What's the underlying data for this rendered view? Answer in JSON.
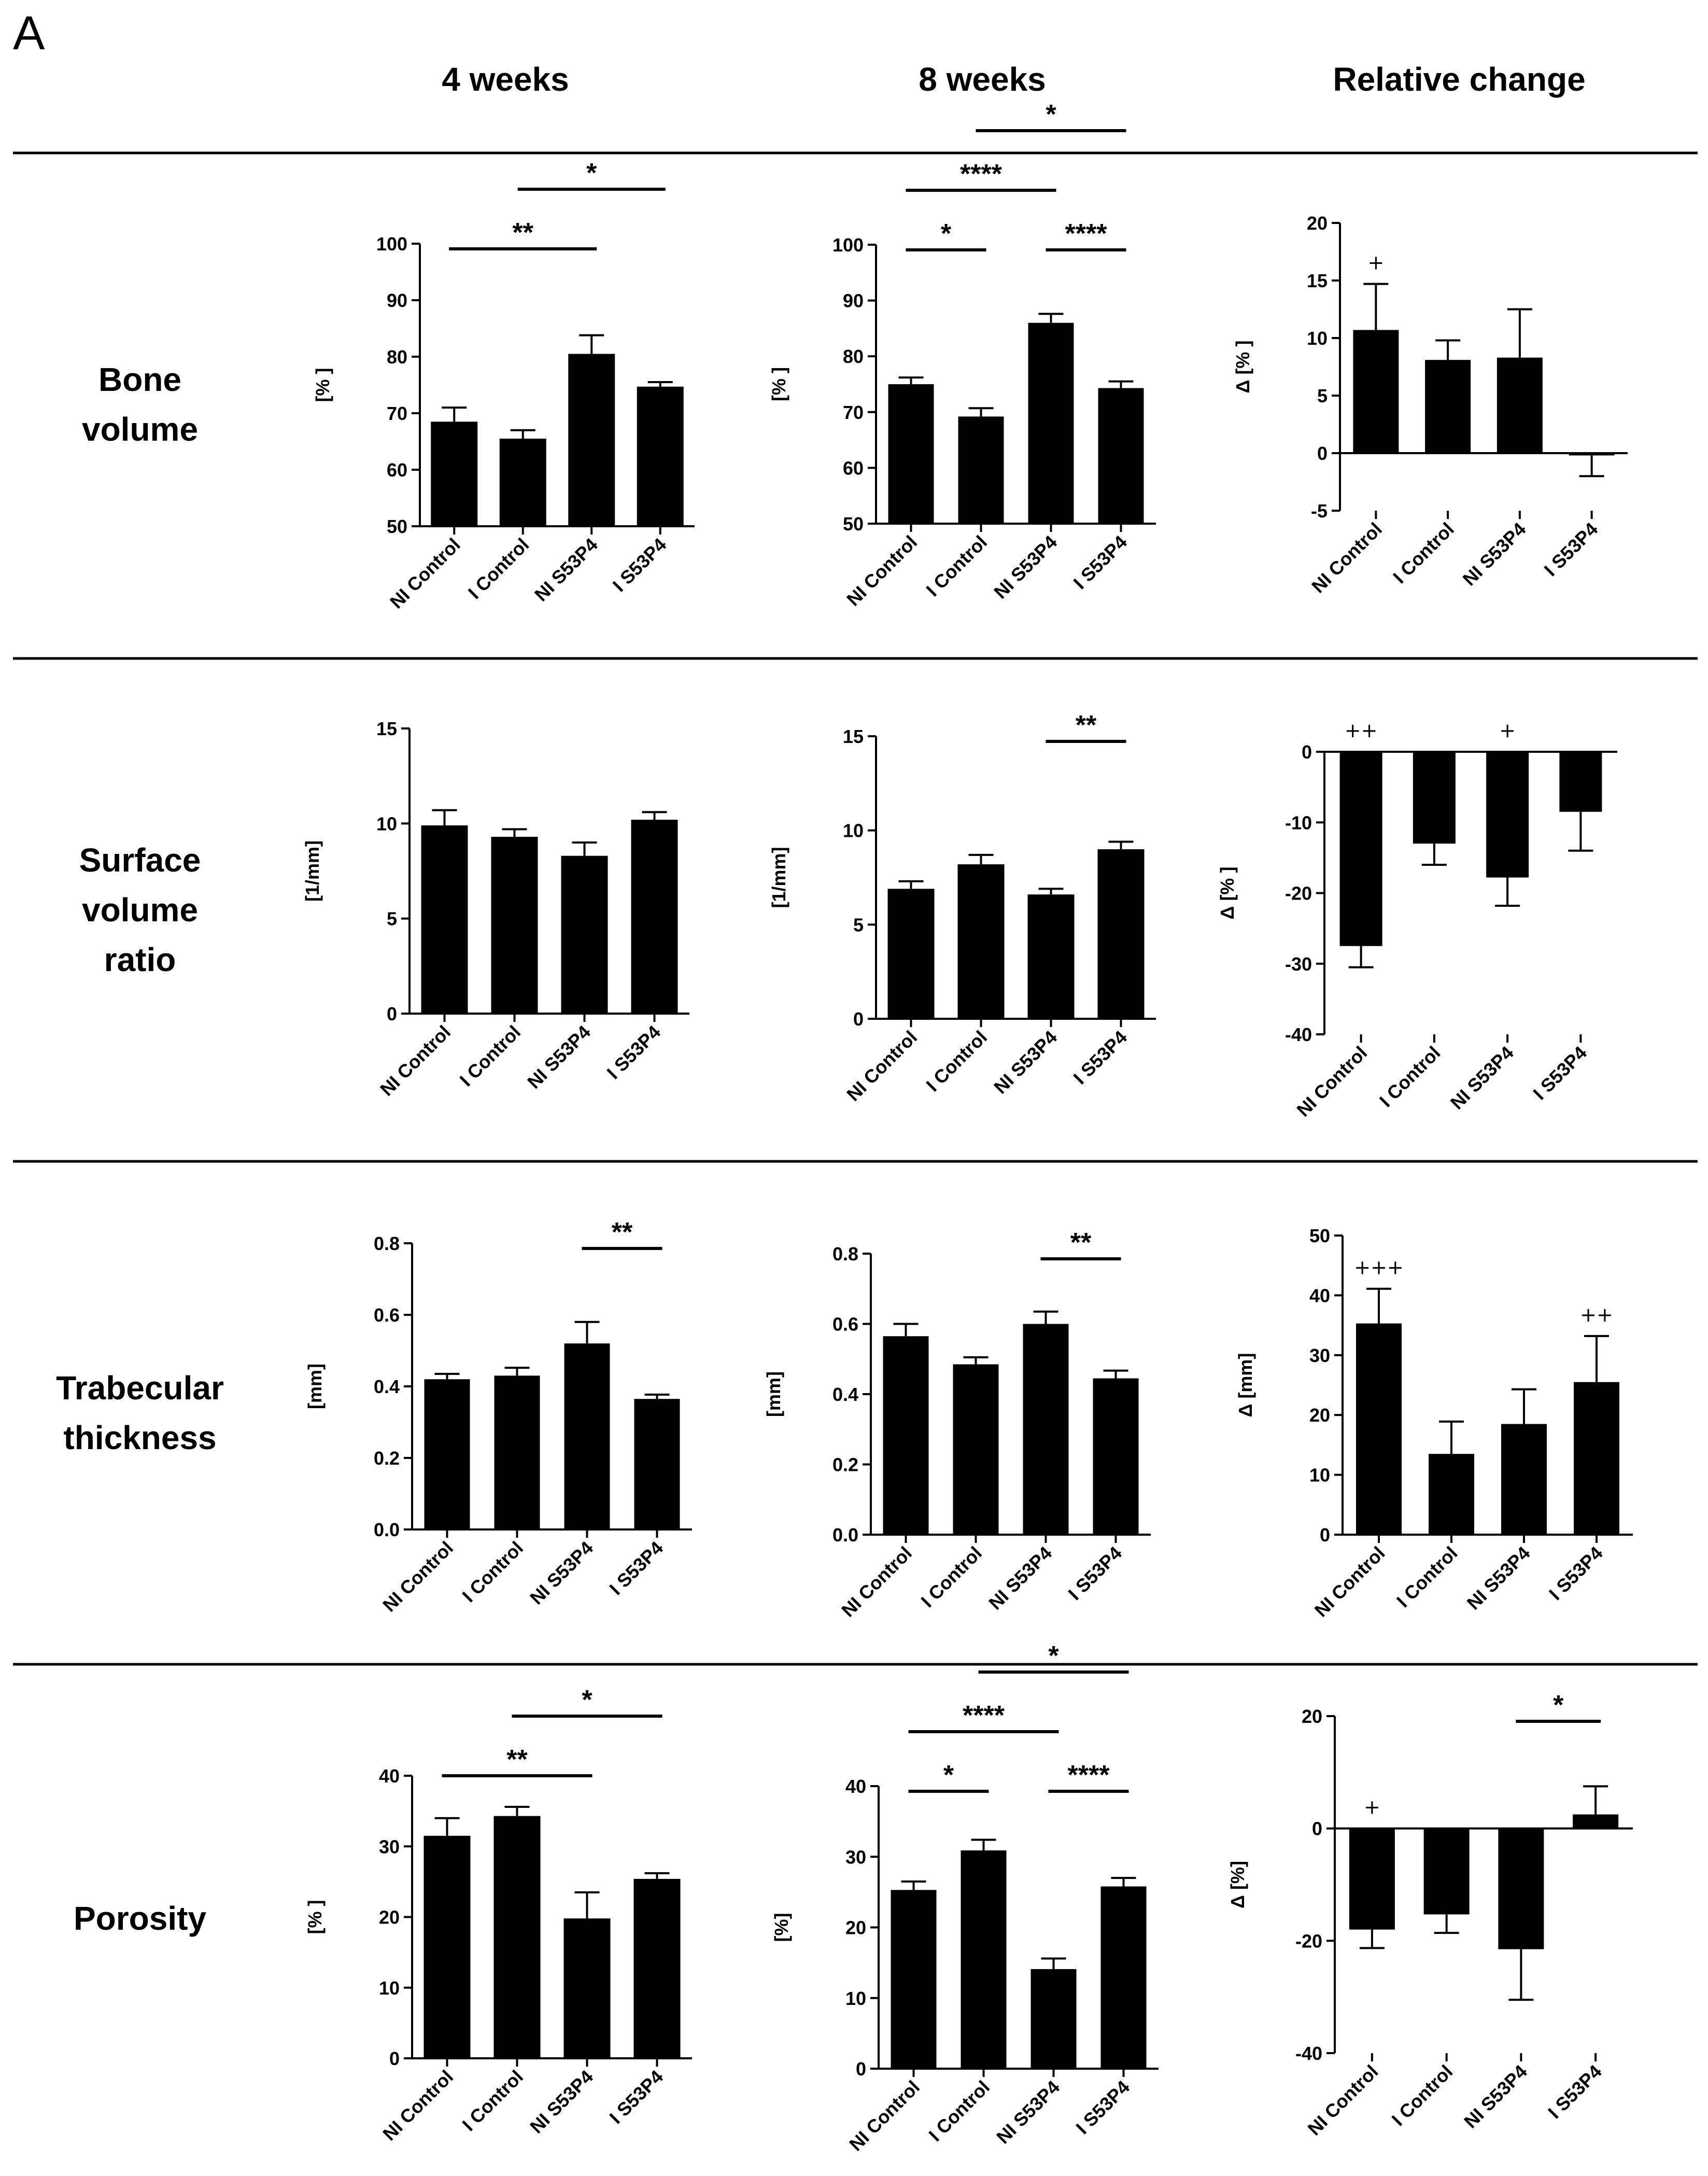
{
  "panel_label": "A",
  "column_headers": [
    "4 weeks",
    "8 weeks",
    "Relative change"
  ],
  "row_headers": [
    [
      "Bone",
      "volume"
    ],
    [
      "Surface",
      "volume",
      "ratio"
    ],
    [
      "Trabecular",
      "thickness"
    ],
    [
      "Porosity"
    ]
  ],
  "colors": {
    "bar": "#000000",
    "axis": "#000000",
    "background": "#ffffff"
  },
  "chart_data": [
    {
      "type": "bar",
      "row": "Bone volume",
      "column": "4 weeks",
      "ylabel": "[% ]",
      "ylim": [
        50,
        100
      ],
      "yticks": [
        50,
        60,
        70,
        80,
        90,
        100
      ],
      "categories": [
        "NI Control",
        "I Control",
        "NI S53P4",
        "I S53P4"
      ],
      "values": [
        68.5,
        65.5,
        80.5,
        74.7
      ],
      "errors": [
        2.5,
        1.5,
        3.3,
        0.8
      ],
      "significance": [
        {
          "from": 0,
          "to": 2,
          "label": "**"
        },
        {
          "from": 1,
          "to": 3,
          "label": "*"
        }
      ]
    },
    {
      "type": "bar",
      "row": "Bone volume",
      "column": "8 weeks",
      "ylabel": "[% ]",
      "ylim": [
        50,
        100
      ],
      "yticks": [
        50,
        60,
        70,
        80,
        90,
        100
      ],
      "categories": [
        "NI Control",
        "I Control",
        "NI S53P4",
        "I S53P4"
      ],
      "values": [
        75.0,
        69.2,
        86.0,
        74.3
      ],
      "errors": [
        1.2,
        1.5,
        1.6,
        1.2
      ],
      "significance": [
        {
          "from": 0,
          "to": 1,
          "label": "*"
        },
        {
          "from": 1,
          "to": 3,
          "label": "*"
        },
        {
          "from": 0,
          "to": 2,
          "label": "****"
        },
        {
          "from": 2,
          "to": 3,
          "label": "****"
        }
      ]
    },
    {
      "type": "bar",
      "row": "Bone volume",
      "column": "Relative change",
      "ylabel": "Δ [% ]",
      "ylim": [
        -5,
        20
      ],
      "yticks": [
        -5,
        0,
        5,
        10,
        15,
        20
      ],
      "categories": [
        "NI Control",
        "I Control",
        "NI S53P4",
        "I S53P4"
      ],
      "values": [
        10.7,
        8.1,
        8.3,
        -0.2
      ],
      "errors": [
        4.0,
        1.7,
        4.2,
        1.8
      ],
      "markers": [
        {
          "index": 0,
          "label": "+"
        }
      ],
      "significance": []
    },
    {
      "type": "bar",
      "row": "Surface volume ratio",
      "column": "4 weeks",
      "ylabel": "[1/mm]",
      "ylim": [
        0,
        15
      ],
      "yticks": [
        0,
        5,
        10,
        15
      ],
      "categories": [
        "NI Control",
        "I Control",
        "NI S53P4",
        "I S53P4"
      ],
      "values": [
        9.9,
        9.3,
        8.3,
        10.2
      ],
      "errors": [
        0.8,
        0.4,
        0.7,
        0.4
      ],
      "significance": []
    },
    {
      "type": "bar",
      "row": "Surface volume ratio",
      "column": "8 weeks",
      "ylabel": "[1/mm]",
      "ylim": [
        0,
        15
      ],
      "yticks": [
        0,
        5,
        10,
        15
      ],
      "categories": [
        "NI Control",
        "I Control",
        "NI S53P4",
        "I S53P4"
      ],
      "values": [
        6.9,
        8.2,
        6.6,
        9.0
      ],
      "errors": [
        0.4,
        0.5,
        0.3,
        0.4
      ],
      "significance": [
        {
          "from": 2,
          "to": 3,
          "label": "**"
        }
      ]
    },
    {
      "type": "bar",
      "row": "Surface volume ratio",
      "column": "Relative change",
      "ylabel": "Δ [% ]",
      "ylim": [
        -40,
        0
      ],
      "yticks": [
        -40,
        -30,
        -20,
        -10,
        0
      ],
      "categories": [
        "NI Control",
        "I Control",
        "NI S53P4",
        "I S53P4"
      ],
      "values": [
        -27.5,
        -13.0,
        -17.8,
        -8.5
      ],
      "errors": [
        3.0,
        3.0,
        4.0,
        5.5
      ],
      "markers": [
        {
          "index": 0,
          "label": "++"
        },
        {
          "index": 2,
          "label": "+"
        }
      ],
      "significance": []
    },
    {
      "type": "bar",
      "row": "Trabecular thickness",
      "column": "4 weeks",
      "ylabel": "[mm]",
      "ylim": [
        0,
        0.8
      ],
      "yticks": [
        0.0,
        0.2,
        0.4,
        0.6,
        0.8
      ],
      "categories": [
        "NI Control",
        "I Control",
        "NI S53P4",
        "I S53P4"
      ],
      "values": [
        0.42,
        0.43,
        0.52,
        0.365
      ],
      "errors": [
        0.015,
        0.022,
        0.06,
        0.012
      ],
      "significance": [
        {
          "from": 2,
          "to": 3,
          "label": "**"
        }
      ]
    },
    {
      "type": "bar",
      "row": "Trabecular thickness",
      "column": "8 weeks",
      "ylabel": "[mm]",
      "ylim": [
        0,
        0.8
      ],
      "yticks": [
        0.0,
        0.2,
        0.4,
        0.6,
        0.8
      ],
      "categories": [
        "NI Control",
        "I Control",
        "NI S53P4",
        "I S53P4"
      ],
      "values": [
        0.565,
        0.485,
        0.6,
        0.445
      ],
      "errors": [
        0.035,
        0.02,
        0.035,
        0.022
      ],
      "significance": [
        {
          "from": 2,
          "to": 3,
          "label": "**"
        }
      ]
    },
    {
      "type": "bar",
      "row": "Trabecular thickness",
      "column": "Relative change",
      "ylabel": "Δ [mm]",
      "ylim": [
        0,
        50
      ],
      "yticks": [
        0,
        10,
        20,
        30,
        40,
        50
      ],
      "categories": [
        "NI Control",
        "I Control",
        "NI S53P4",
        "I S53P4"
      ],
      "values": [
        35.3,
        13.5,
        18.5,
        25.5
      ],
      "errors": [
        5.8,
        5.4,
        5.8,
        7.7
      ],
      "markers": [
        {
          "index": 0,
          "label": "+++"
        },
        {
          "index": 3,
          "label": "++"
        }
      ],
      "significance": []
    },
    {
      "type": "bar",
      "row": "Porosity",
      "column": "4 weeks",
      "ylabel": "[% ]",
      "ylim": [
        0,
        40
      ],
      "yticks": [
        0,
        10,
        20,
        30,
        40
      ],
      "categories": [
        "NI Control",
        "I Control",
        "NI S53P4",
        "I S53P4"
      ],
      "values": [
        31.5,
        34.3,
        19.8,
        25.4
      ],
      "errors": [
        2.5,
        1.3,
        3.7,
        0.8
      ],
      "significance": [
        {
          "from": 0,
          "to": 2,
          "label": "**"
        },
        {
          "from": 1,
          "to": 3,
          "label": "*"
        }
      ]
    },
    {
      "type": "bar",
      "row": "Porosity",
      "column": "8 weeks",
      "ylabel": "[%]",
      "ylim": [
        0,
        40
      ],
      "yticks": [
        0,
        10,
        20,
        30,
        40
      ],
      "categories": [
        "NI Control",
        "I Control",
        "NI S53P4",
        "I S53P4"
      ],
      "values": [
        25.3,
        30.9,
        14.1,
        25.8
      ],
      "errors": [
        1.2,
        1.5,
        1.5,
        1.2
      ],
      "significance": [
        {
          "from": 0,
          "to": 1,
          "label": "*"
        },
        {
          "from": 1,
          "to": 3,
          "label": "*"
        },
        {
          "from": 0,
          "to": 2,
          "label": "****"
        },
        {
          "from": 2,
          "to": 3,
          "label": "****"
        }
      ]
    },
    {
      "type": "bar",
      "row": "Porosity",
      "column": "Relative change",
      "ylabel": "Δ [%]",
      "ylim": [
        -40,
        20
      ],
      "yticks": [
        -40,
        -20,
        0,
        20
      ],
      "categories": [
        "NI Control",
        "I Control",
        "NI S53P4",
        "I S53P4"
      ],
      "values": [
        -18.0,
        -15.3,
        -21.5,
        2.5
      ],
      "errors": [
        3.3,
        3.3,
        9.0,
        5.0
      ],
      "markers": [
        {
          "index": 0,
          "label": "+"
        }
      ],
      "significance": [
        {
          "from": 2,
          "to": 3,
          "label": "*"
        }
      ]
    }
  ]
}
